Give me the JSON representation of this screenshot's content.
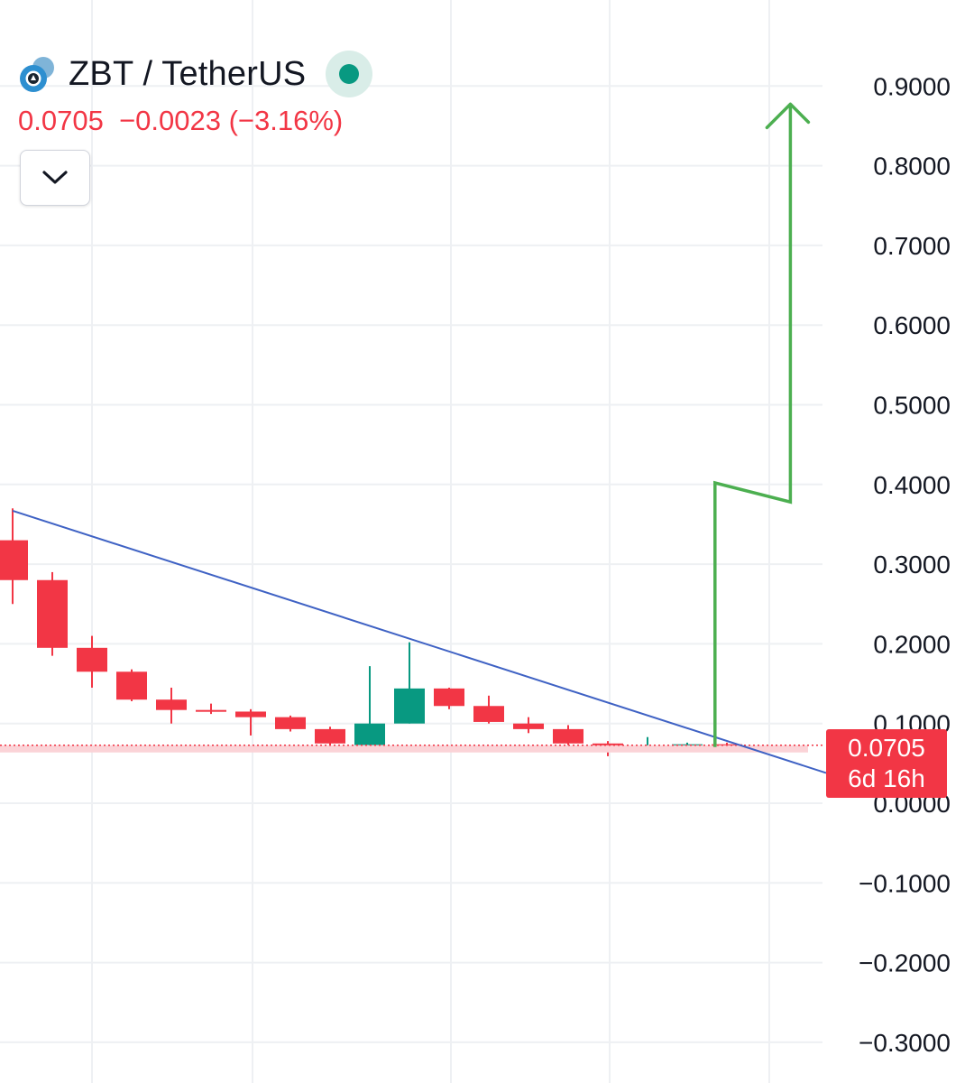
{
  "header": {
    "symbol": "ZBT / TetherUS",
    "last_price": "0.0705",
    "change": "−0.0023 (−3.16%)",
    "status_color": "#089981",
    "collapse_icon": "chevron-down-icon"
  },
  "price_tag": {
    "price": "0.0705",
    "countdown": "6d 16h",
    "color": "#f23645"
  },
  "chart_data": {
    "type": "candlestick",
    "y_axis": {
      "ticks": [
        "0.9000",
        "0.8000",
        "0.7000",
        "0.6000",
        "0.5000",
        "0.4000",
        "0.3000",
        "0.2000",
        "0.1000",
        "0.0000",
        "−0.1000",
        "−0.2000",
        "−0.3000"
      ],
      "ylim": [
        -0.35,
        0.95
      ],
      "position": "right"
    },
    "grid": true,
    "up_color": "#089981",
    "down_color": "#f23645",
    "candles": [
      {
        "o": 0.33,
        "h": 0.37,
        "l": 0.25,
        "c": 0.28
      },
      {
        "o": 0.28,
        "h": 0.29,
        "l": 0.185,
        "c": 0.195
      },
      {
        "o": 0.195,
        "h": 0.21,
        "l": 0.145,
        "c": 0.165
      },
      {
        "o": 0.165,
        "h": 0.168,
        "l": 0.128,
        "c": 0.13
      },
      {
        "o": 0.13,
        "h": 0.145,
        "l": 0.1,
        "c": 0.117
      },
      {
        "o": 0.117,
        "h": 0.125,
        "l": 0.112,
        "c": 0.115
      },
      {
        "o": 0.115,
        "h": 0.118,
        "l": 0.085,
        "c": 0.108
      },
      {
        "o": 0.108,
        "h": 0.11,
        "l": 0.09,
        "c": 0.093
      },
      {
        "o": 0.093,
        "h": 0.096,
        "l": 0.072,
        "c": 0.075
      },
      {
        "o": 0.073,
        "h": 0.172,
        "l": 0.072,
        "c": 0.1
      },
      {
        "o": 0.1,
        "h": 0.202,
        "l": 0.1,
        "c": 0.144
      },
      {
        "o": 0.144,
        "h": 0.145,
        "l": 0.118,
        "c": 0.122
      },
      {
        "o": 0.122,
        "h": 0.135,
        "l": 0.1,
        "c": 0.102
      },
      {
        "o": 0.1,
        "h": 0.108,
        "l": 0.088,
        "c": 0.093
      },
      {
        "o": 0.093,
        "h": 0.098,
        "l": 0.073,
        "c": 0.075
      },
      {
        "o": 0.075,
        "h": 0.078,
        "l": 0.059,
        "c": 0.068
      },
      {
        "o": 0.068,
        "h": 0.083,
        "l": 0.067,
        "c": 0.071
      },
      {
        "o": 0.071,
        "h": 0.076,
        "l": 0.069,
        "c": 0.074
      },
      {
        "o": 0.074,
        "h": 0.076,
        "l": 0.066,
        "c": 0.0705
      }
    ],
    "trendline": {
      "from": [
        0,
        0.367
      ],
      "to": [
        20.5,
        0.038
      ],
      "color": "#3f62c4"
    },
    "projection": {
      "color": "#4caf50",
      "points": [
        [
          17.7,
          0.0705
        ],
        [
          17.7,
          0.402
        ],
        [
          19.6,
          0.378
        ],
        [
          19.6,
          0.875
        ]
      ],
      "arrowhead": "up"
    },
    "last_price_line": 0.0705
  }
}
